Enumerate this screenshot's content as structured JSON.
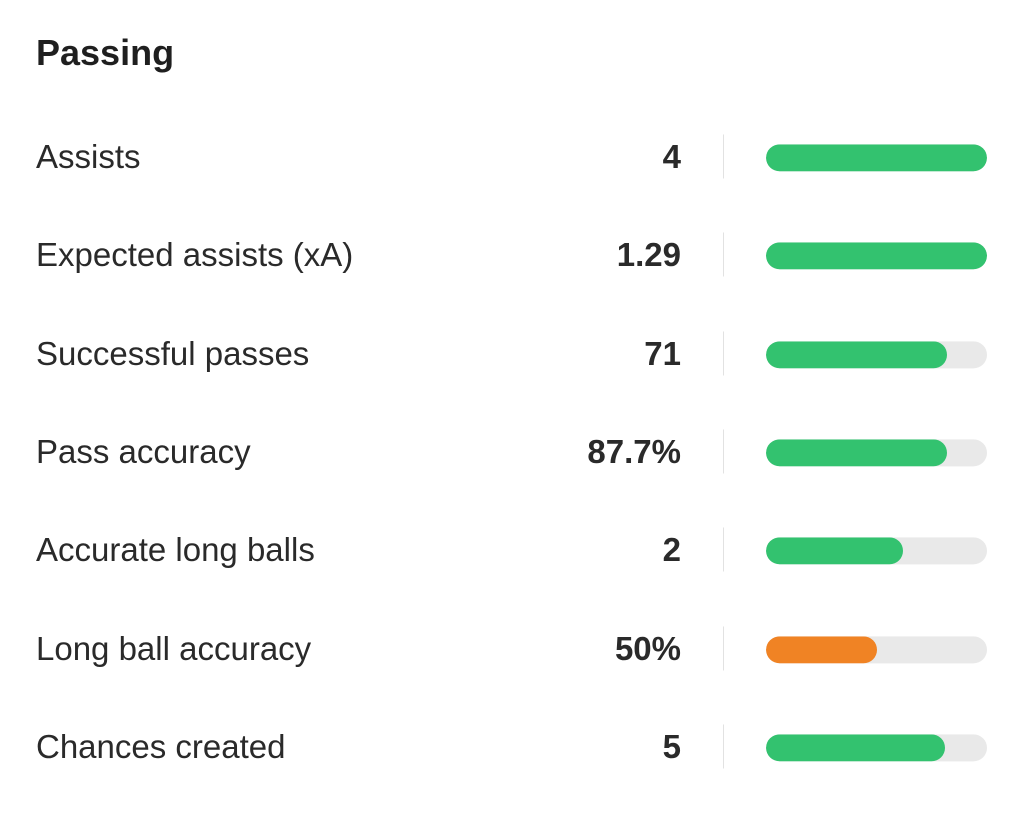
{
  "section": {
    "title": "Passing"
  },
  "colors": {
    "good": "#33c26f",
    "average": "#f08324",
    "track": "#e9e9e9"
  },
  "stats": [
    {
      "label": "Assists",
      "value": "4",
      "percentile": 1.0,
      "level": "good"
    },
    {
      "label": "Expected assists (xA)",
      "value": "1.29",
      "percentile": 1.0,
      "level": "good"
    },
    {
      "label": "Successful passes",
      "value": "71",
      "percentile": 0.82,
      "level": "good"
    },
    {
      "label": "Pass accuracy",
      "value": "87.7%",
      "percentile": 0.82,
      "level": "good"
    },
    {
      "label": "Accurate long balls",
      "value": "2",
      "percentile": 0.62,
      "level": "good"
    },
    {
      "label": "Long ball accuracy",
      "value": "50%",
      "percentile": 0.5,
      "level": "average"
    },
    {
      "label": "Chances created",
      "value": "5",
      "percentile": 0.81,
      "level": "good"
    }
  ]
}
